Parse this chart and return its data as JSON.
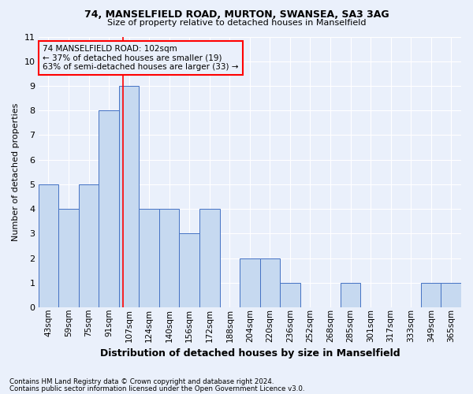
{
  "title1": "74, MANSELFIELD ROAD, MURTON, SWANSEA, SA3 3AG",
  "title2": "Size of property relative to detached houses in Manselfield",
  "xlabel": "Distribution of detached houses by size in Manselfield",
  "ylabel": "Number of detached properties",
  "footnote1": "Contains HM Land Registry data © Crown copyright and database right 2024.",
  "footnote2": "Contains public sector information licensed under the Open Government Licence v3.0.",
  "annotation_line1": "74 MANSELFIELD ROAD: 102sqm",
  "annotation_line2": "← 37% of detached houses are smaller (19)",
  "annotation_line3": "63% of semi-detached houses are larger (33) →",
  "bar_labels": [
    "43sqm",
    "59sqm",
    "75sqm",
    "91sqm",
    "107sqm",
    "124sqm",
    "140sqm",
    "156sqm",
    "172sqm",
    "188sqm",
    "204sqm",
    "220sqm",
    "236sqm",
    "252sqm",
    "268sqm",
    "285sqm",
    "301sqm",
    "317sqm",
    "333sqm",
    "349sqm",
    "365sqm"
  ],
  "bar_values": [
    5,
    4,
    5,
    8,
    9,
    4,
    4,
    3,
    4,
    0,
    2,
    2,
    1,
    0,
    0,
    1,
    0,
    0,
    0,
    1,
    1
  ],
  "bar_color": "#c6d9f0",
  "bar_edge_color": "#4472c4",
  "background_color": "#eaf0fb",
  "grid_color": "#ffffff",
  "ylim": [
    0,
    11
  ],
  "yticks": [
    0,
    1,
    2,
    3,
    4,
    5,
    6,
    7,
    8,
    9,
    10,
    11
  ],
  "ref_value": 102,
  "ref_bin_low": 91,
  "ref_bin_high": 107,
  "ref_bin_low_idx": 3,
  "ref_bin_high_idx": 4
}
